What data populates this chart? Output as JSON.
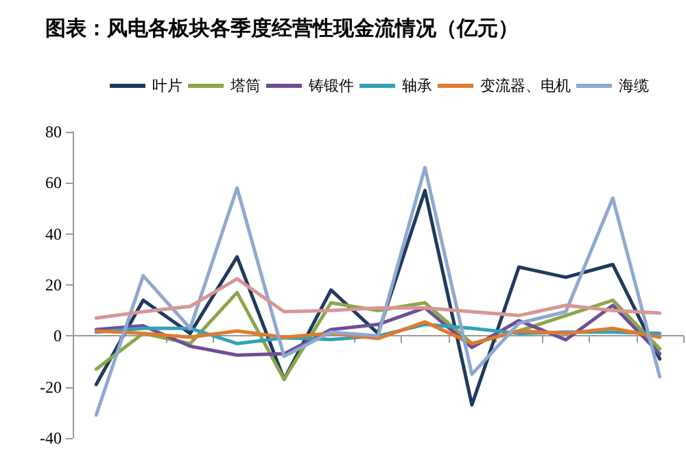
{
  "chart_data": {
    "type": "line",
    "title": "图表：风电各板块各季度经营性现金流情况（亿元）",
    "categories": [
      null,
      null,
      null,
      null,
      null,
      null,
      null,
      null,
      null,
      null,
      null,
      null,
      null
    ],
    "series": [
      {
        "name": "叶片",
        "color": "#1f3a5f",
        "values": [
          -19,
          14,
          1,
          31,
          -17,
          18,
          1,
          57,
          -27,
          27,
          23,
          28,
          -9
        ]
      },
      {
        "name": "塔筒",
        "color": "#8aa64a",
        "values": [
          -13,
          1,
          -3,
          17,
          -17,
          13,
          10,
          13,
          -3,
          2,
          8,
          14,
          -5
        ]
      },
      {
        "name": "铸锻件",
        "color": "#6f4e96",
        "values": [
          2.5,
          4,
          -4,
          -7.5,
          -7,
          2.5,
          4.5,
          11,
          -4.5,
          6,
          -1.5,
          12,
          -7
        ]
      },
      {
        "name": "轴承",
        "color": "#34a0b8",
        "values": [
          1.5,
          3,
          3,
          -3,
          -0.7,
          -1.4,
          0,
          4.5,
          3,
          1,
          1.5,
          1.5,
          1
        ]
      },
      {
        "name": "变流器、电机",
        "color": "#e07b2e",
        "values": [
          2,
          1,
          -0.5,
          2,
          -0.5,
          1,
          -1,
          5.5,
          -3,
          2,
          1,
          3,
          -0.5
        ]
      },
      {
        "name": "海缆",
        "color": "#8fa8d0",
        "values": [
          -31,
          23.6,
          3,
          58,
          -8,
          1.5,
          0,
          66,
          -15,
          5,
          9.5,
          54,
          -16
        ]
      },
      {
        "color": "#d99694",
        "values": [
          7,
          9.5,
          11.6,
          22.4,
          9.5,
          10,
          11,
          11,
          9.5,
          8,
          12,
          10,
          9
        ]
      }
    ],
    "ylim": [
      -40,
      80
    ],
    "yticks": [
      -40,
      -20,
      0,
      20,
      40,
      60,
      80
    ],
    "legend": "top",
    "marker": "none",
    "line_style": "solid"
  }
}
